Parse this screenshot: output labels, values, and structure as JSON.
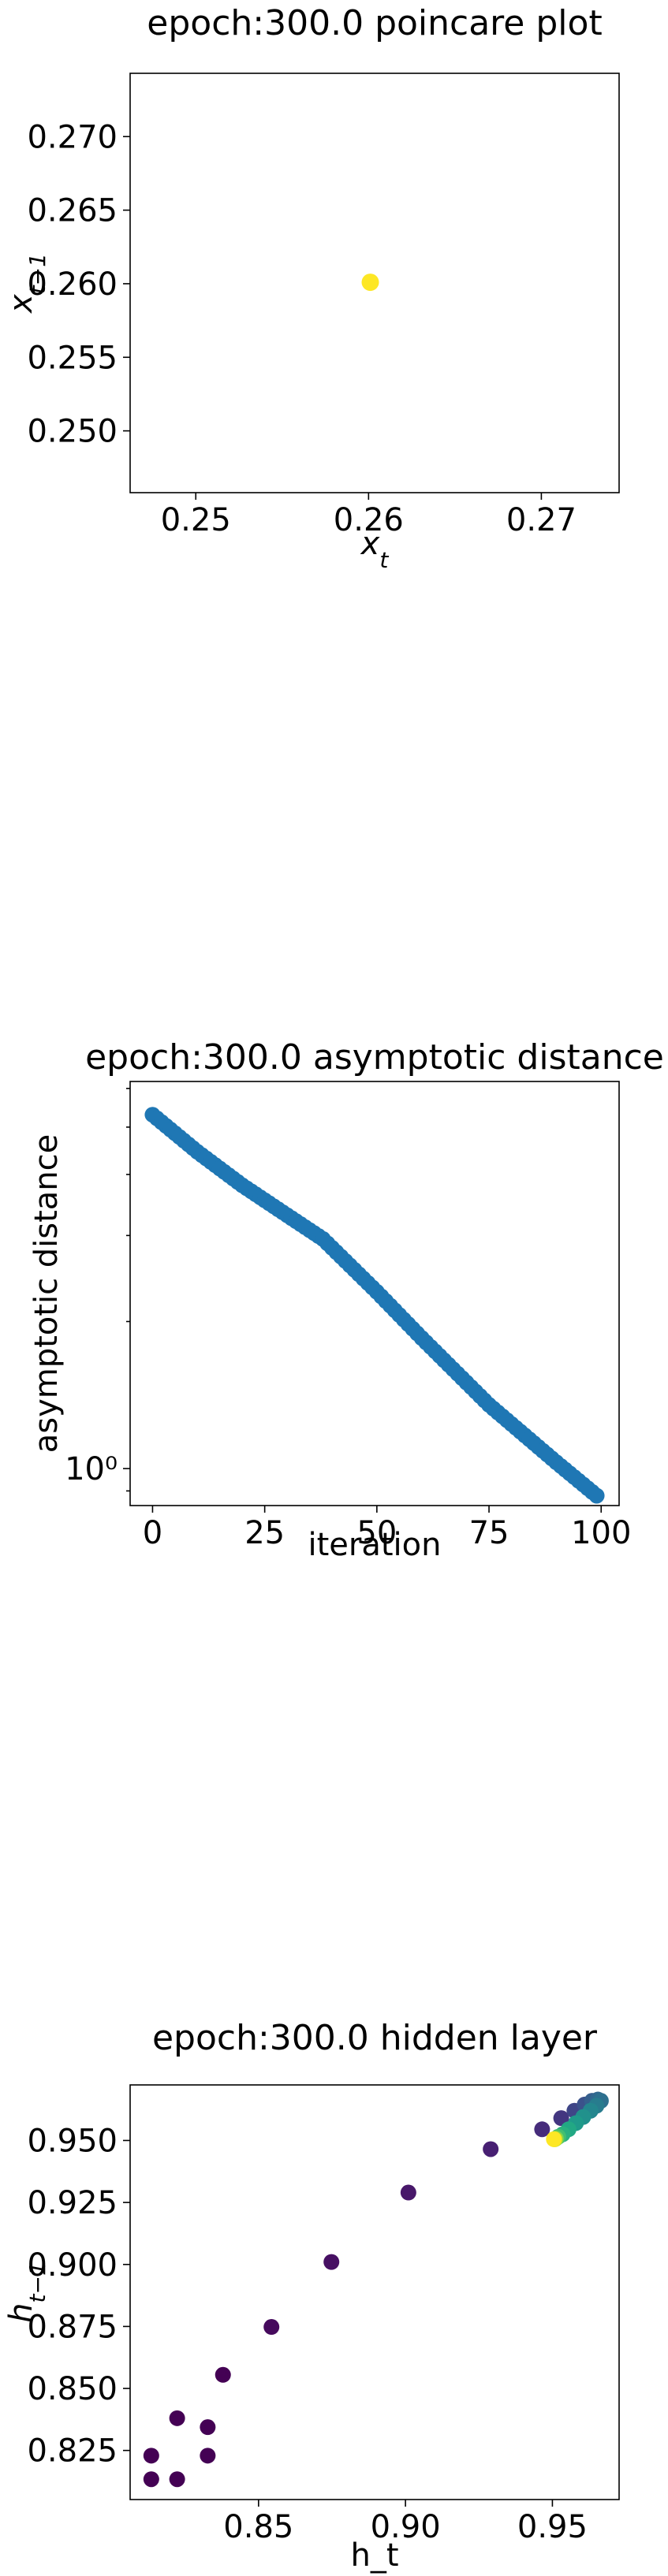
{
  "chart_data": [
    {
      "type": "scatter",
      "title": "epoch:300.0 poincare plot",
      "xlabel": "x_t",
      "ylabel": "x_{t-1}",
      "xlim": [
        0.2462,
        0.2745
      ],
      "ylim": [
        0.2458,
        0.2743
      ],
      "xticks": [
        0.25,
        0.26,
        0.27
      ],
      "xtick_labels": [
        "0.25",
        "0.26",
        "0.27"
      ],
      "yticks": [
        0.25,
        0.255,
        0.26,
        0.265,
        0.27
      ],
      "ytick_labels": [
        "0.250",
        "0.255",
        "0.260",
        "0.265",
        "0.270"
      ],
      "points": [
        {
          "x": 0.2601,
          "y": 0.2601,
          "color": "#fde725"
        }
      ]
    },
    {
      "type": "scatter",
      "title": "epoch:300.0 asymptotic distance",
      "xlabel": "iteration",
      "ylabel": "asymptotic distance",
      "yscale": "log",
      "xlim": [
        -5,
        104
      ],
      "ylim": [
        0.84,
        6.2
      ],
      "xticks": [
        0,
        25,
        50,
        75,
        100
      ],
      "xtick_labels": [
        "0",
        "25",
        "50",
        "75",
        "100"
      ],
      "yticks": [
        1
      ],
      "ytick_labels": [
        "10⁰"
      ],
      "marker_color": "#1f77b4",
      "curve": {
        "x_start": 0,
        "x_end": 99,
        "count": 100,
        "knots": [
          [
            0,
            5.3
          ],
          [
            10,
            4.45
          ],
          [
            20,
            3.8
          ],
          [
            30,
            3.3
          ],
          [
            38,
            2.95
          ],
          [
            50,
            2.3
          ],
          [
            60,
            1.85
          ],
          [
            75,
            1.35
          ],
          [
            90,
            1.03
          ],
          [
            99,
            0.88
          ]
        ]
      }
    },
    {
      "type": "scatter",
      "title": "epoch:300.0 hidden layer",
      "xlabel": "h_t",
      "ylabel": "h_{t-1}",
      "xlim": [
        0.8063,
        0.9727
      ],
      "ylim": [
        0.8052,
        0.9724
      ],
      "xticks": [
        0.85,
        0.9,
        0.95
      ],
      "xtick_labels": [
        "0.85",
        "0.90",
        "0.95"
      ],
      "yticks": [
        0.825,
        0.85,
        0.875,
        0.9,
        0.925,
        0.95
      ],
      "ytick_labels": [
        "0.825",
        "0.850",
        "0.875",
        "0.900",
        "0.925",
        "0.950"
      ],
      "points": [
        {
          "x": 0.8135,
          "y": 0.8229,
          "color": "#440154"
        },
        {
          "x": 0.8135,
          "y": 0.8134,
          "color": "#440154"
        },
        {
          "x": 0.8223,
          "y": 0.8134,
          "color": "#440154"
        },
        {
          "x": 0.8223,
          "y": 0.838,
          "color": "#440154"
        },
        {
          "x": 0.8327,
          "y": 0.8229,
          "color": "#440154"
        },
        {
          "x": 0.8327,
          "y": 0.8344,
          "color": "#440154"
        },
        {
          "x": 0.8379,
          "y": 0.8555,
          "color": "#440154"
        },
        {
          "x": 0.8544,
          "y": 0.8748,
          "color": "#460a5d"
        },
        {
          "x": 0.8748,
          "y": 0.901,
          "color": "#471063"
        },
        {
          "x": 0.901,
          "y": 0.929,
          "color": "#48186a"
        },
        {
          "x": 0.929,
          "y": 0.9465,
          "color": "#471f72"
        },
        {
          "x": 0.9465,
          "y": 0.9545,
          "color": "#462c7b"
        },
        {
          "x": 0.953,
          "y": 0.959,
          "color": "#433680"
        },
        {
          "x": 0.9575,
          "y": 0.962,
          "color": "#3f4587"
        },
        {
          "x": 0.961,
          "y": 0.9645,
          "color": "#3b528b"
        },
        {
          "x": 0.9635,
          "y": 0.966,
          "color": "#355f8d"
        },
        {
          "x": 0.9655,
          "y": 0.9665,
          "color": "#31688e"
        },
        {
          "x": 0.9665,
          "y": 0.966,
          "color": "#2d708e"
        },
        {
          "x": 0.965,
          "y": 0.964,
          "color": "#287c8e"
        },
        {
          "x": 0.963,
          "y": 0.962,
          "color": "#24868e"
        },
        {
          "x": 0.9605,
          "y": 0.9595,
          "color": "#21918c"
        },
        {
          "x": 0.958,
          "y": 0.957,
          "color": "#1f9a8a"
        },
        {
          "x": 0.9555,
          "y": 0.9545,
          "color": "#22a884"
        },
        {
          "x": 0.9535,
          "y": 0.9525,
          "color": "#2ab07f"
        },
        {
          "x": 0.952,
          "y": 0.9515,
          "color": "#44bf70"
        },
        {
          "x": 0.9512,
          "y": 0.9508,
          "color": "#7ad151"
        },
        {
          "x": 0.9508,
          "y": 0.9505,
          "color": "#bddf26"
        },
        {
          "x": 0.9505,
          "y": 0.9505,
          "color": "#fde725"
        }
      ]
    }
  ]
}
